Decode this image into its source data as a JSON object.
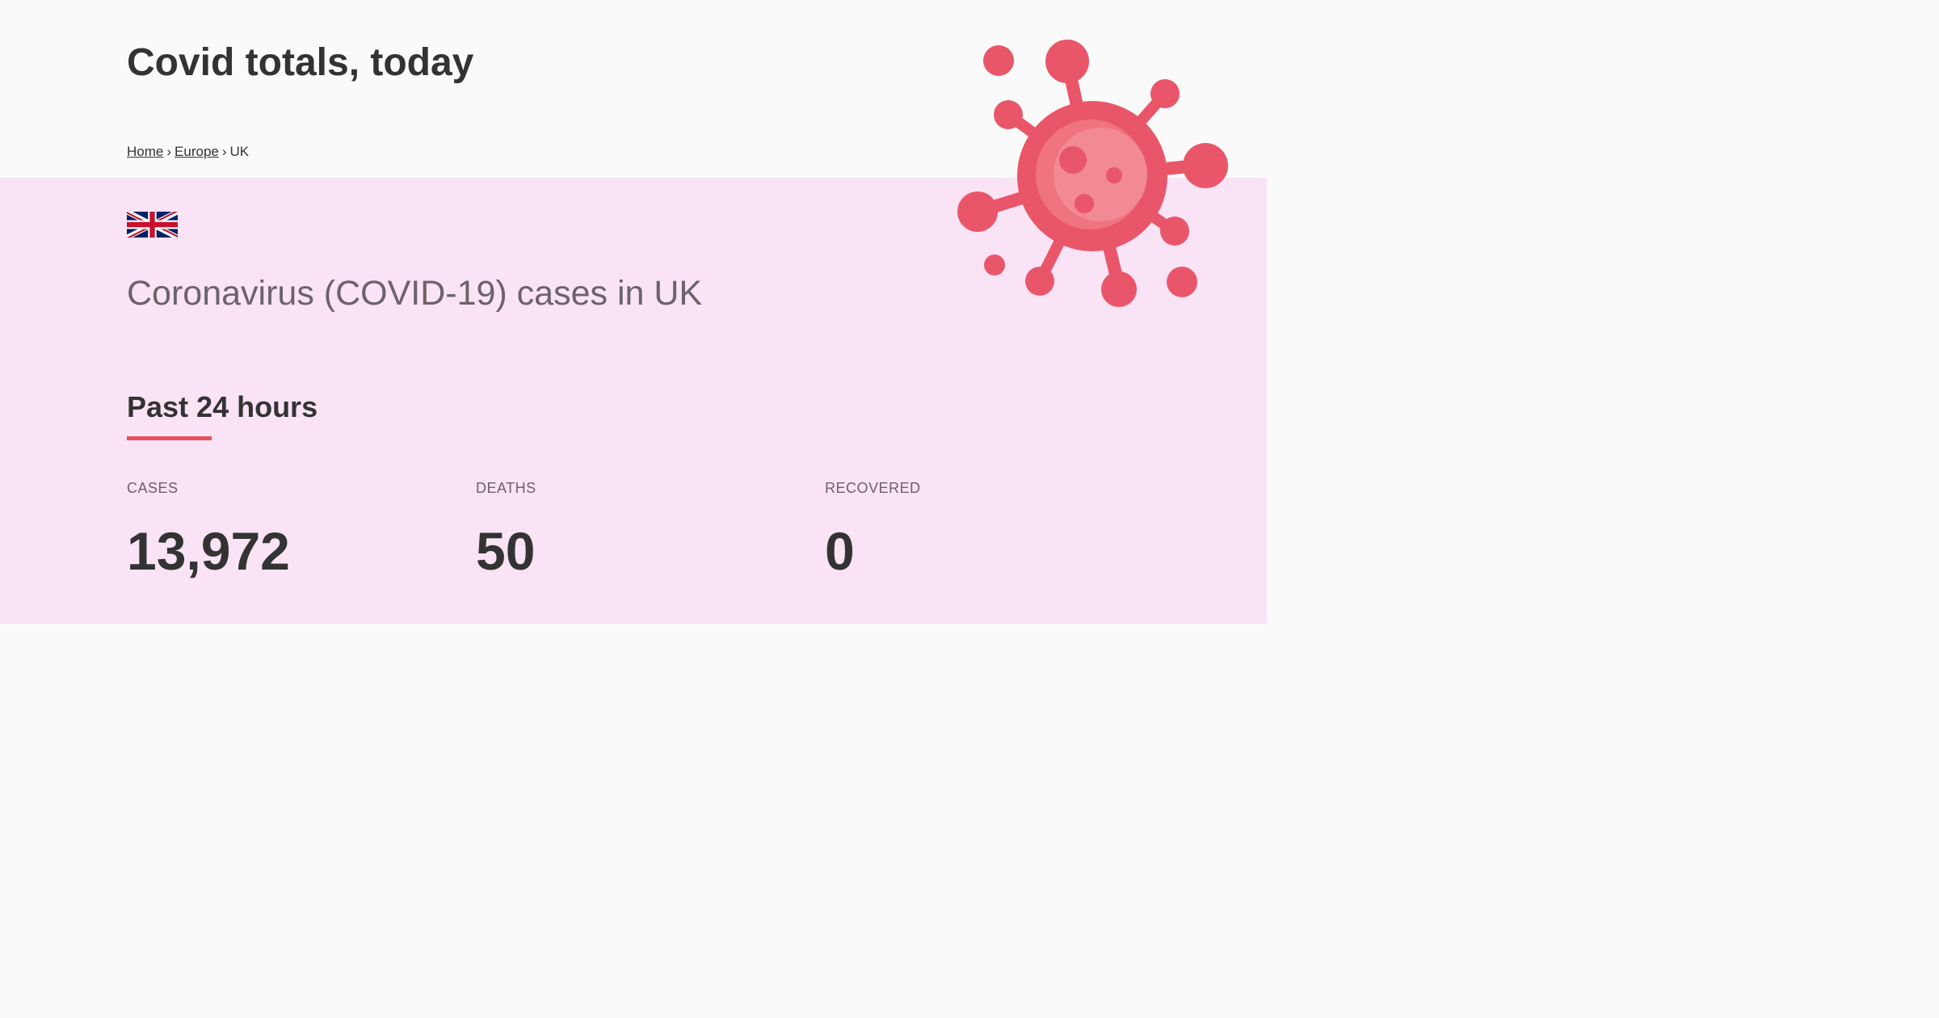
{
  "header": {
    "title": "Covid totals, today"
  },
  "breadcrumb": {
    "items": [
      {
        "label": "Home"
      },
      {
        "label": "Europe"
      },
      {
        "label": "UK"
      }
    ],
    "separator": "›"
  },
  "main": {
    "flag_icon": "uk-flag-icon",
    "heading": "Coronavirus (COVID-19) cases in UK",
    "section_title": "Past 24 hours",
    "stats": [
      {
        "label": "CASES",
        "value": "13,972"
      },
      {
        "label": "DEATHS",
        "value": "50"
      },
      {
        "label": "RECOVERED",
        "value": "0"
      }
    ]
  },
  "decor": {
    "virus_icon": "virus-icon",
    "virus_color": "#e9566a",
    "accent_color": "#e8505b",
    "band_color": "#f9e3f5"
  }
}
